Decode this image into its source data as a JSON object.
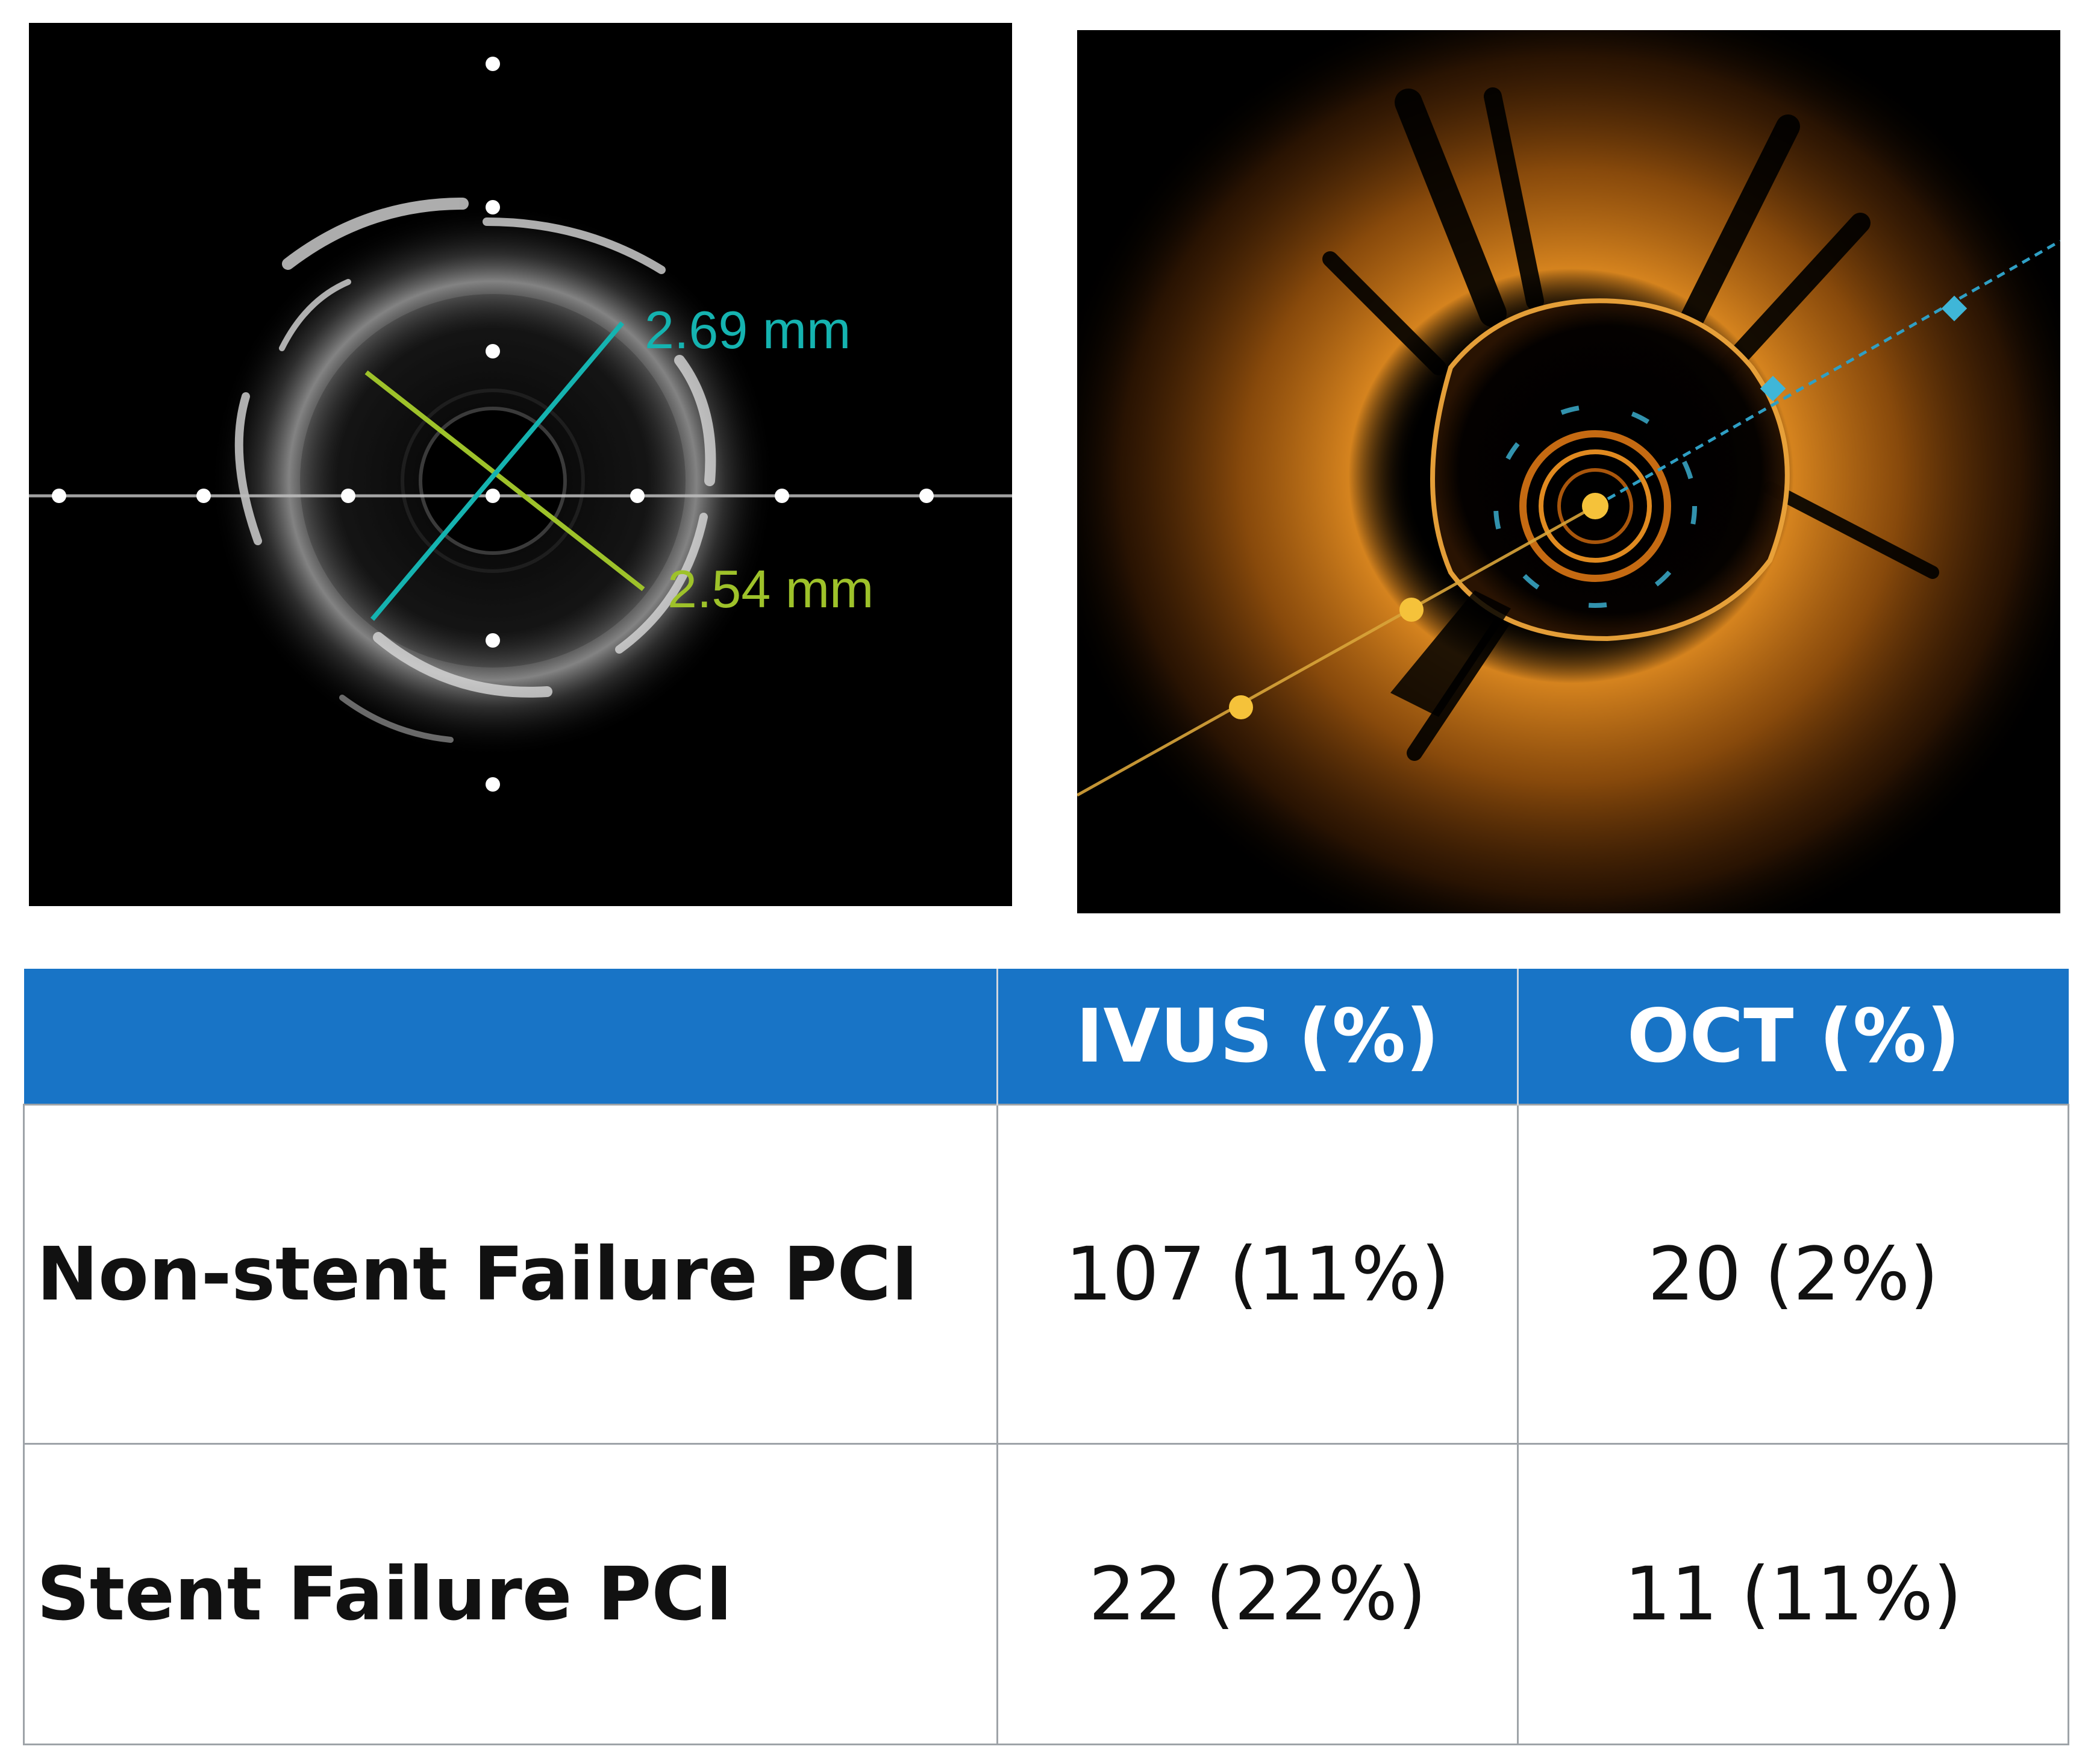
{
  "ivus_image": {
    "measurement_1": "2.69 mm",
    "measurement_2": "2.54 mm",
    "measurement_1_color": "#15b3b0",
    "measurement_2_color": "#9ec22a"
  },
  "oct_image": {
    "glow_color": "#d07a18",
    "marker_color_yellow": "#f5c23a",
    "marker_color_cyan": "#3fb6d8"
  },
  "table": {
    "header_color": "#1874c6",
    "columns": [
      "",
      "IVUS (%)",
      "OCT (%)"
    ],
    "rows": [
      {
        "label": "Non-stent Failure PCI",
        "ivus": "107 (11%)",
        "oct": "20 (2%)"
      },
      {
        "label": "Stent Failure PCI",
        "ivus": "22 (22%)",
        "oct": "11 (11%)"
      }
    ]
  }
}
